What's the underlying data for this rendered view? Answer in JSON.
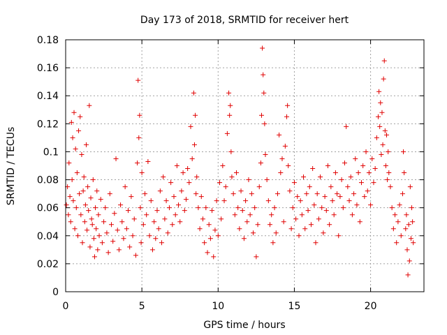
{
  "chart_data": {
    "type": "scatter",
    "title": "Day 173 of 2018, SRMTID for receiver hert",
    "xlabel": "GPS time / hours",
    "ylabel": "SRMTID / TECUs",
    "xlim": [
      0,
      23.5
    ],
    "ylim": [
      0,
      0.18
    ],
    "xticks": [
      0,
      5,
      10,
      15,
      20
    ],
    "yticks": [
      0,
      0.02,
      0.04,
      0.06,
      0.08,
      0.1,
      0.12,
      0.14,
      0.16,
      0.18
    ],
    "ytick_labels": [
      "0",
      "0.02",
      "0.04",
      "0.06",
      "0.08",
      "0.1",
      "0.12",
      "0.14",
      "0.16",
      "0.18"
    ],
    "grid": true,
    "marker": "plus",
    "colors": {
      "series": "#e00000",
      "grid": "#a0a0a0",
      "axis": "#000000"
    },
    "series": [
      {
        "name": "SRMTID",
        "points": [
          [
            0.05,
            0.062
          ],
          [
            0.12,
            0.075
          ],
          [
            0.18,
            0.055
          ],
          [
            0.22,
            0.092
          ],
          [
            0.28,
            0.068
          ],
          [
            0.33,
            0.05
          ],
          [
            0.38,
            0.121
          ],
          [
            0.42,
            0.08
          ],
          [
            0.46,
            0.11
          ],
          [
            0.5,
            0.065
          ],
          [
            0.55,
            0.128
          ],
          [
            0.6,
            0.045
          ],
          [
            0.65,
            0.102
          ],
          [
            0.7,
            0.06
          ],
          [
            0.75,
            0.085
          ],
          [
            0.8,
            0.04
          ],
          [
            0.85,
            0.115
          ],
          [
            0.9,
            0.07
          ],
          [
            0.95,
            0.125
          ],
          [
            1.0,
            0.055
          ],
          [
            1.05,
            0.098
          ],
          [
            1.1,
            0.035
          ],
          [
            1.15,
            0.072
          ],
          [
            1.2,
            0.082
          ],
          [
            1.25,
            0.05
          ],
          [
            1.3,
            0.062
          ],
          [
            1.35,
            0.105
          ],
          [
            1.4,
            0.044
          ],
          [
            1.45,
            0.075
          ],
          [
            1.5,
            0.058
          ],
          [
            1.55,
            0.133
          ],
          [
            1.6,
            0.032
          ],
          [
            1.65,
            0.067
          ],
          [
            1.7,
            0.052
          ],
          [
            1.75,
            0.048
          ],
          [
            1.8,
            0.08
          ],
          [
            1.85,
            0.038
          ],
          [
            1.9,
            0.025
          ],
          [
            1.95,
            0.06
          ],
          [
            2.0,
            0.045
          ],
          [
            2.05,
            0.072
          ],
          [
            2.1,
            0.03
          ],
          [
            2.15,
            0.055
          ],
          [
            2.2,
            0.04
          ],
          [
            2.3,
            0.066
          ],
          [
            2.4,
            0.035
          ],
          [
            2.5,
            0.05
          ],
          [
            2.6,
            0.06
          ],
          [
            2.7,
            0.042
          ],
          [
            2.8,
            0.028
          ],
          [
            2.9,
            0.07
          ],
          [
            3.0,
            0.048
          ],
          [
            3.1,
            0.036
          ],
          [
            3.2,
            0.056
          ],
          [
            3.3,
            0.095
          ],
          [
            3.4,
            0.044
          ],
          [
            3.5,
            0.03
          ],
          [
            3.6,
            0.062
          ],
          [
            3.7,
            0.05
          ],
          [
            3.8,
            0.038
          ],
          [
            3.9,
            0.075
          ],
          [
            4.0,
            0.045
          ],
          [
            4.1,
            0.058
          ],
          [
            4.2,
            0.032
          ],
          [
            4.3,
            0.068
          ],
          [
            4.4,
            0.04
          ],
          [
            4.5,
            0.052
          ],
          [
            4.6,
            0.026
          ],
          [
            4.7,
            0.092
          ],
          [
            4.75,
            0.151
          ],
          [
            4.8,
            0.11
          ],
          [
            4.85,
            0.126
          ],
          [
            4.9,
            0.06
          ],
          [
            4.95,
            0.035
          ],
          [
            5.0,
            0.085
          ],
          [
            5.1,
            0.048
          ],
          [
            5.2,
            0.07
          ],
          [
            5.3,
            0.055
          ],
          [
            5.4,
            0.093
          ],
          [
            5.5,
            0.04
          ],
          [
            5.6,
            0.065
          ],
          [
            5.7,
            0.03
          ],
          [
            5.8,
            0.05
          ],
          [
            5.9,
            0.038
          ],
          [
            6.0,
            0.058
          ],
          [
            6.1,
            0.045
          ],
          [
            6.2,
            0.072
          ],
          [
            6.3,
            0.035
          ],
          [
            6.4,
            0.082
          ],
          [
            6.5,
            0.052
          ],
          [
            6.6,
            0.065
          ],
          [
            6.7,
            0.042
          ],
          [
            6.8,
            0.06
          ],
          [
            6.9,
            0.078
          ],
          [
            7.0,
            0.048
          ],
          [
            7.1,
            0.068
          ],
          [
            7.2,
            0.055
          ],
          [
            7.3,
            0.09
          ],
          [
            7.4,
            0.062
          ],
          [
            7.5,
            0.05
          ],
          [
            7.6,
            0.072
          ],
          [
            7.7,
            0.085
          ],
          [
            7.8,
            0.058
          ],
          [
            7.9,
            0.066
          ],
          [
            8.0,
            0.088
          ],
          [
            8.1,
            0.078
          ],
          [
            8.2,
            0.118
          ],
          [
            8.3,
            0.095
          ],
          [
            8.4,
            0.142
          ],
          [
            8.45,
            0.105
          ],
          [
            8.5,
            0.126
          ],
          [
            8.55,
            0.07
          ],
          [
            8.6,
            0.082
          ],
          [
            8.7,
            0.06
          ],
          [
            8.8,
            0.045
          ],
          [
            8.9,
            0.068
          ],
          [
            9.0,
            0.052
          ],
          [
            9.1,
            0.035
          ],
          [
            9.2,
            0.06
          ],
          [
            9.3,
            0.028
          ],
          [
            9.4,
            0.048
          ],
          [
            9.5,
            0.038
          ],
          [
            9.6,
            0.058
          ],
          [
            9.7,
            0.025
          ],
          [
            9.8,
            0.044
          ],
          [
            9.9,
            0.065
          ],
          [
            10.0,
            0.04
          ],
          [
            10.1,
            0.078
          ],
          [
            10.2,
            0.052
          ],
          [
            10.3,
            0.09
          ],
          [
            10.4,
            0.065
          ],
          [
            10.5,
            0.075
          ],
          [
            10.6,
            0.113
          ],
          [
            10.7,
            0.142
          ],
          [
            10.75,
            0.126
          ],
          [
            10.8,
            0.133
          ],
          [
            10.85,
            0.1
          ],
          [
            10.9,
            0.082
          ],
          [
            11.0,
            0.07
          ],
          [
            11.1,
            0.055
          ],
          [
            11.2,
            0.085
          ],
          [
            11.3,
            0.06
          ],
          [
            11.4,
            0.045
          ],
          [
            11.5,
            0.072
          ],
          [
            11.6,
            0.058
          ],
          [
            11.7,
            0.038
          ],
          [
            11.8,
            0.065
          ],
          [
            11.9,
            0.05
          ],
          [
            12.0,
            0.08
          ],
          [
            12.1,
            0.055
          ],
          [
            12.2,
            0.07
          ],
          [
            12.3,
            0.042
          ],
          [
            12.4,
            0.06
          ],
          [
            12.5,
            0.025
          ],
          [
            12.6,
            0.048
          ],
          [
            12.7,
            0.075
          ],
          [
            12.8,
            0.092
          ],
          [
            12.85,
            0.126
          ],
          [
            12.9,
            0.174
          ],
          [
            12.95,
            0.155
          ],
          [
            13.0,
            0.142
          ],
          [
            13.05,
            0.12
          ],
          [
            13.1,
            0.098
          ],
          [
            13.2,
            0.08
          ],
          [
            13.3,
            0.065
          ],
          [
            13.4,
            0.048
          ],
          [
            13.5,
            0.055
          ],
          [
            13.6,
            0.035
          ],
          [
            13.7,
            0.06
          ],
          [
            13.8,
            0.042
          ],
          [
            13.9,
            0.07
          ],
          [
            14.0,
            0.112
          ],
          [
            14.1,
            0.085
          ],
          [
            14.2,
            0.095
          ],
          [
            14.3,
            0.05
          ],
          [
            14.4,
            0.104
          ],
          [
            14.5,
            0.125
          ],
          [
            14.55,
            0.133
          ],
          [
            14.6,
            0.09
          ],
          [
            14.7,
            0.072
          ],
          [
            14.8,
            0.045
          ],
          [
            14.9,
            0.06
          ],
          [
            15.0,
            0.078
          ],
          [
            15.1,
            0.052
          ],
          [
            15.2,
            0.068
          ],
          [
            15.3,
            0.04
          ],
          [
            15.4,
            0.065
          ],
          [
            15.5,
            0.055
          ],
          [
            15.6,
            0.082
          ],
          [
            15.7,
            0.045
          ],
          [
            15.8,
            0.07
          ],
          [
            15.9,
            0.058
          ],
          [
            16.0,
            0.075
          ],
          [
            16.1,
            0.048
          ],
          [
            16.2,
            0.088
          ],
          [
            16.3,
            0.062
          ],
          [
            16.4,
            0.035
          ],
          [
            16.5,
            0.07
          ],
          [
            16.6,
            0.052
          ],
          [
            16.7,
            0.082
          ],
          [
            16.8,
            0.06
          ],
          [
            16.9,
            0.042
          ],
          [
            17.0,
            0.068
          ],
          [
            17.1,
            0.058
          ],
          [
            17.2,
            0.09
          ],
          [
            17.3,
            0.048
          ],
          [
            17.4,
            0.075
          ],
          [
            17.5,
            0.065
          ],
          [
            17.6,
            0.055
          ],
          [
            17.7,
            0.085
          ],
          [
            17.8,
            0.07
          ],
          [
            17.9,
            0.04
          ],
          [
            18.0,
            0.068
          ],
          [
            18.1,
            0.08
          ],
          [
            18.2,
            0.06
          ],
          [
            18.3,
            0.092
          ],
          [
            18.4,
            0.118
          ],
          [
            18.5,
            0.075
          ],
          [
            18.6,
            0.065
          ],
          [
            18.7,
            0.082
          ],
          [
            18.8,
            0.055
          ],
          [
            18.9,
            0.07
          ],
          [
            19.0,
            0.095
          ],
          [
            19.1,
            0.062
          ],
          [
            19.2,
            0.085
          ],
          [
            19.3,
            0.05
          ],
          [
            19.4,
            0.078
          ],
          [
            19.5,
            0.09
          ],
          [
            19.6,
            0.068
          ],
          [
            19.7,
            0.1
          ],
          [
            19.8,
            0.072
          ],
          [
            19.9,
            0.085
          ],
          [
            20.0,
            0.062
          ],
          [
            20.1,
            0.095
          ],
          [
            20.2,
            0.078
          ],
          [
            20.3,
            0.088
          ],
          [
            20.4,
            0.11
          ],
          [
            20.5,
            0.125
          ],
          [
            20.55,
            0.143
          ],
          [
            20.6,
            0.118
          ],
          [
            20.65,
            0.135
          ],
          [
            20.7,
            0.098
          ],
          [
            20.75,
            0.128
          ],
          [
            20.8,
            0.105
          ],
          [
            20.85,
            0.152
          ],
          [
            20.9,
            0.165
          ],
          [
            20.95,
            0.115
          ],
          [
            21.0,
            0.09
          ],
          [
            21.05,
            0.112
          ],
          [
            21.1,
            0.08
          ],
          [
            21.15,
            0.1
          ],
          [
            21.2,
            0.085
          ],
          [
            21.3,
            0.075
          ],
          [
            21.4,
            0.06
          ],
          [
            21.5,
            0.045
          ],
          [
            21.6,
            0.055
          ],
          [
            21.7,
            0.035
          ],
          [
            21.8,
            0.05
          ],
          [
            21.9,
            0.062
          ],
          [
            22.0,
            0.04
          ],
          [
            22.1,
            0.07
          ],
          [
            22.15,
            0.1
          ],
          [
            22.2,
            0.085
          ],
          [
            22.3,
            0.045
          ],
          [
            22.35,
            0.055
          ],
          [
            22.4,
            0.03
          ],
          [
            22.45,
            0.012
          ],
          [
            22.5,
            0.048
          ],
          [
            22.55,
            0.022
          ],
          [
            22.6,
            0.075
          ],
          [
            22.65,
            0.038
          ],
          [
            22.7,
            0.06
          ],
          [
            22.75,
            0.05
          ],
          [
            22.8,
            0.035
          ]
        ]
      }
    ]
  }
}
